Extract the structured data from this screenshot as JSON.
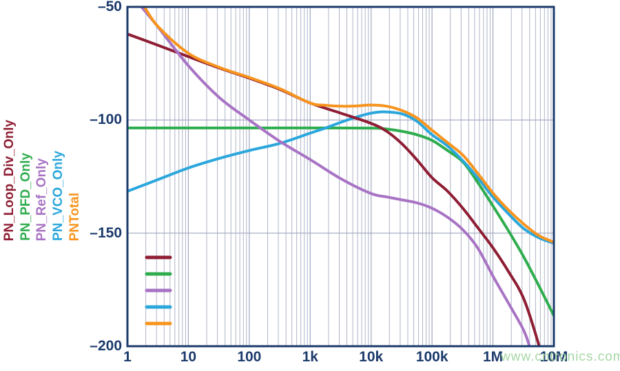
{
  "watermark": "www.cntronics.com",
  "chart_data": {
    "type": "line",
    "title": "",
    "x_scale": "log",
    "x_range": [
      1,
      10000000
    ],
    "y_range": [
      -200,
      -50
    ],
    "x_tick_labels": [
      "1",
      "10",
      "100",
      "1k",
      "10k",
      "100k",
      "1M",
      "10M"
    ],
    "x_tick_values": [
      1,
      10,
      100,
      1000,
      10000,
      100000,
      1000000,
      10000000
    ],
    "y_tick_labels": [
      "–50",
      "–100",
      "–150",
      "–200"
    ],
    "y_tick_values": [
      -50,
      -100,
      -150,
      -200
    ],
    "grid": "vertical log minor+major lines; horizontal lines at -100 and -150",
    "legend_position": "inside-bottom-left-swatches-only",
    "axis_color": "#1B3A6B",
    "grid_color": "#AFB4C8",
    "grid_major_color": "#9FA5BE",
    "draw_order": [
      1,
      3,
      0,
      2,
      4
    ],
    "series": [
      {
        "name": "PN_Loop_Div_Only",
        "color": "#8F1D33",
        "points": [
          [
            1,
            -62
          ],
          [
            3.2,
            -67
          ],
          [
            10,
            -72
          ],
          [
            32,
            -77
          ],
          [
            100,
            -81.5
          ],
          [
            320,
            -86.5
          ],
          [
            1000,
            -92.5
          ],
          [
            3200,
            -97
          ],
          [
            10000,
            -101.5
          ],
          [
            18000,
            -105
          ],
          [
            32000,
            -110.5
          ],
          [
            56000,
            -117.5
          ],
          [
            100000,
            -125.5
          ],
          [
            180000,
            -131.5
          ],
          [
            320000,
            -139
          ],
          [
            560000,
            -147.5
          ],
          [
            1000000,
            -156.5
          ],
          [
            1800000,
            -167
          ],
          [
            3200000,
            -179
          ],
          [
            5600000,
            -199
          ],
          [
            6300000,
            -206
          ]
        ]
      },
      {
        "name": "PN_PFD_Only",
        "color": "#2FAD4E",
        "points": [
          [
            1,
            -103.5
          ],
          [
            1000,
            -103.5
          ],
          [
            10000,
            -103.6
          ],
          [
            18000,
            -104
          ],
          [
            32000,
            -105
          ],
          [
            56000,
            -106.5
          ],
          [
            100000,
            -109
          ],
          [
            180000,
            -113.5
          ],
          [
            320000,
            -118.5
          ],
          [
            560000,
            -127.5
          ],
          [
            1000000,
            -138
          ],
          [
            1800000,
            -149
          ],
          [
            3200000,
            -160.5
          ],
          [
            5600000,
            -173
          ],
          [
            10000000,
            -186.5
          ]
        ]
      },
      {
        "name": "PN_Ref_Only",
        "color": "#A873C4",
        "points": [
          [
            1.7,
            -50
          ],
          [
            3.2,
            -59
          ],
          [
            10,
            -76
          ],
          [
            32,
            -90
          ],
          [
            100,
            -100
          ],
          [
            320,
            -109.5
          ],
          [
            1000,
            -117.5
          ],
          [
            3200,
            -126
          ],
          [
            10000,
            -132.5
          ],
          [
            18000,
            -134
          ],
          [
            32000,
            -135.3
          ],
          [
            56000,
            -136.6
          ],
          [
            100000,
            -139
          ],
          [
            180000,
            -143
          ],
          [
            320000,
            -148.5
          ],
          [
            560000,
            -156.5
          ],
          [
            1000000,
            -169
          ],
          [
            1800000,
            -181
          ],
          [
            3200000,
            -193
          ],
          [
            4200000,
            -202
          ]
        ]
      },
      {
        "name": "PN_VCO_Only",
        "color": "#2BA7DC",
        "points": [
          [
            1,
            -131.5
          ],
          [
            3.2,
            -126.3
          ],
          [
            10,
            -121.2
          ],
          [
            32,
            -117
          ],
          [
            100,
            -113.5
          ],
          [
            320,
            -110.3
          ],
          [
            1000,
            -105.8
          ],
          [
            1800,
            -103.5
          ],
          [
            3200,
            -101
          ],
          [
            5600,
            -98.8
          ],
          [
            10000,
            -97
          ],
          [
            16000,
            -96.4
          ],
          [
            32000,
            -97.3
          ],
          [
            56000,
            -100.5
          ],
          [
            100000,
            -106.5
          ],
          [
            180000,
            -111.5
          ],
          [
            320000,
            -118
          ],
          [
            560000,
            -125.5
          ],
          [
            1000000,
            -134
          ],
          [
            1800000,
            -141.5
          ],
          [
            3200000,
            -148
          ],
          [
            5600000,
            -152
          ],
          [
            10000000,
            -154.5
          ]
        ]
      },
      {
        "name": "PNTotal",
        "color": "#F7941E",
        "points": [
          [
            1.9,
            -50
          ],
          [
            3.2,
            -58.8
          ],
          [
            10,
            -70.5
          ],
          [
            32,
            -76.7
          ],
          [
            100,
            -81.2
          ],
          [
            320,
            -86.2
          ],
          [
            1000,
            -92.5
          ],
          [
            1800,
            -93.5
          ],
          [
            3200,
            -93.9
          ],
          [
            5600,
            -93.8
          ],
          [
            10000,
            -93.4
          ],
          [
            18000,
            -93.9
          ],
          [
            32000,
            -95.8
          ],
          [
            56000,
            -99
          ],
          [
            100000,
            -104.5
          ],
          [
            180000,
            -110
          ],
          [
            320000,
            -115.5
          ],
          [
            560000,
            -123.5
          ],
          [
            1000000,
            -132.3
          ],
          [
            1800000,
            -139.8
          ],
          [
            3200000,
            -146
          ],
          [
            5600000,
            -151
          ],
          [
            10000000,
            -154
          ]
        ]
      }
    ]
  }
}
